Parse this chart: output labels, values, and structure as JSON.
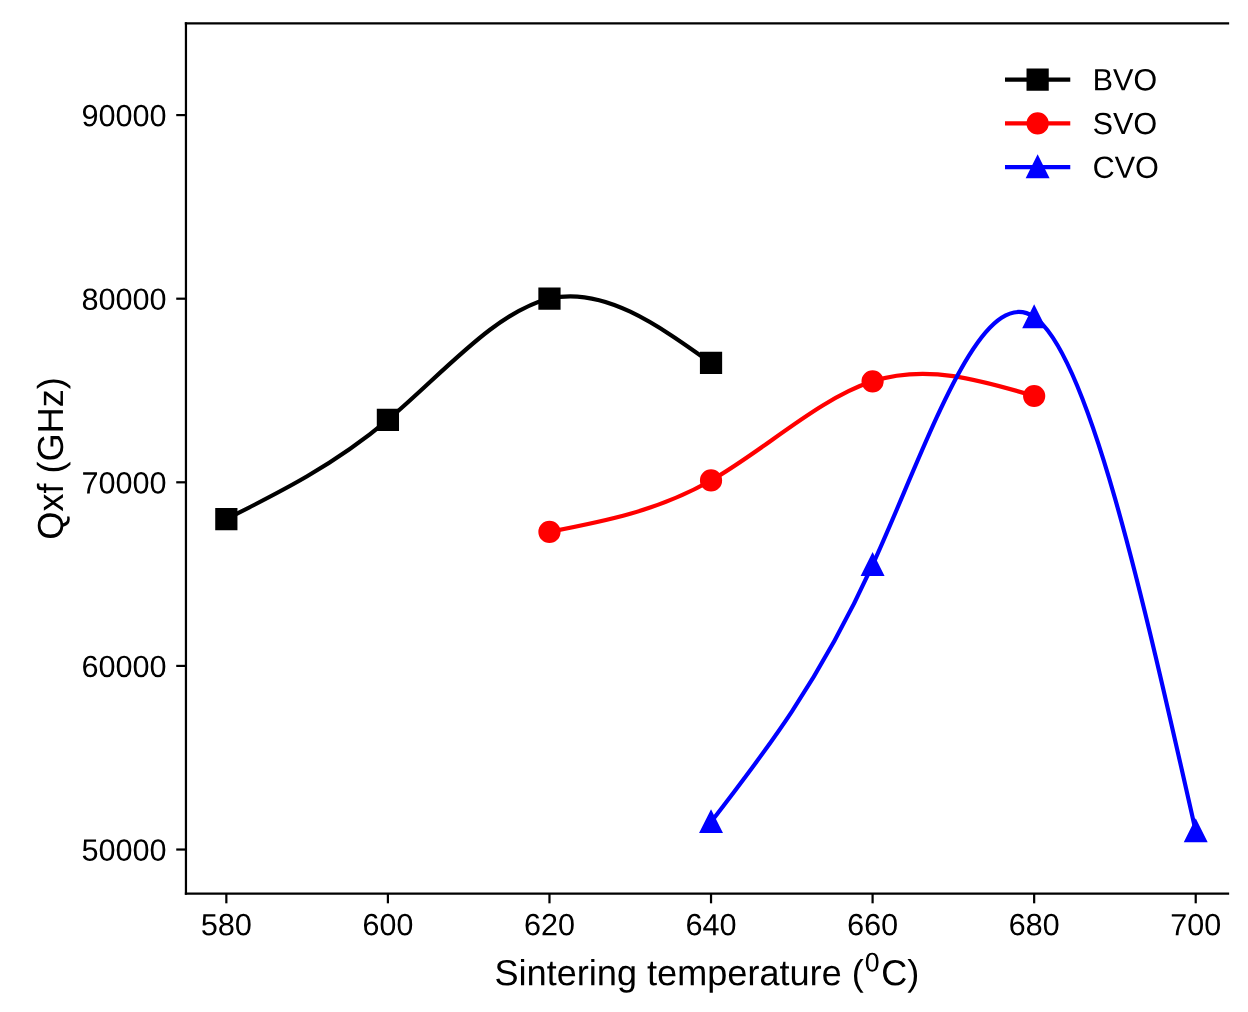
{
  "chart_data": {
    "type": "line",
    "xlabel": "Sintering temperature ($^{0}$C)",
    "ylabel": "Qxf (GHz)",
    "xlim": [
      575,
      704
    ],
    "xticks": [
      580,
      600,
      620,
      640,
      660,
      680,
      700
    ],
    "ylim": [
      47600,
      95000
    ],
    "yticks": [
      50000,
      60000,
      70000,
      80000,
      90000
    ],
    "grid": false,
    "legend": "top right",
    "line_style": "solid",
    "series": [
      {
        "name": "BVO",
        "color": "#000000",
        "marker": "square",
        "x": [
          580,
          600,
          620,
          640
        ],
        "values": [
          68000,
          73400,
          80000,
          76500
        ]
      },
      {
        "name": "SVO",
        "color": "#ff0000",
        "marker": "circle",
        "x": [
          620,
          640,
          660,
          680
        ],
        "values": [
          67300,
          70100,
          75500,
          74700
        ]
      },
      {
        "name": "CVO",
        "color": "#0000ff",
        "marker": "triangle",
        "x": [
          640,
          660,
          680,
          700
        ],
        "values": [
          51500,
          65500,
          79000,
          51000
        ]
      }
    ]
  }
}
